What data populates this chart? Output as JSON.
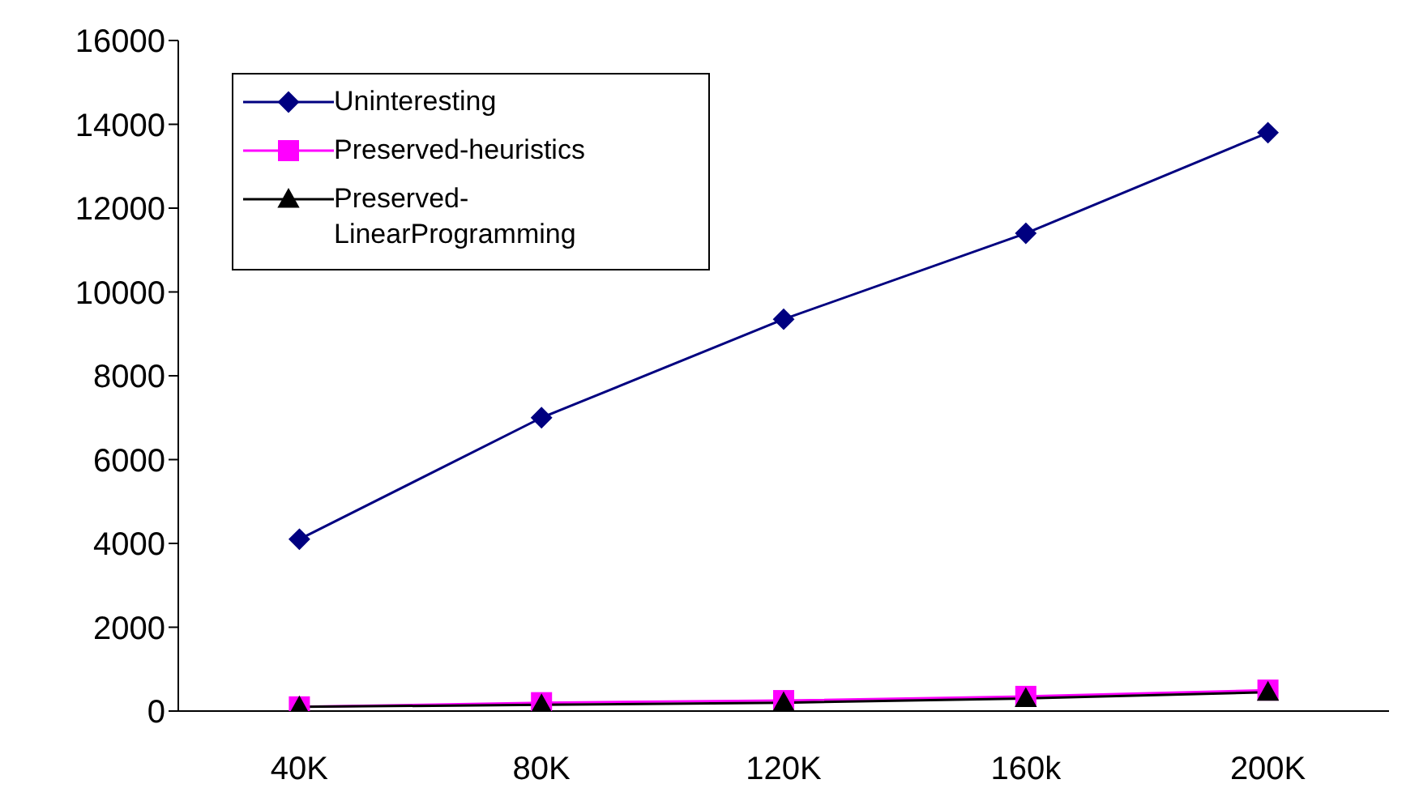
{
  "chart_data": {
    "type": "line",
    "categories": [
      "40K",
      "80K",
      "120K",
      "160k",
      "200K"
    ],
    "series": [
      {
        "name": "Uninteresting",
        "color": "#000080",
        "marker": "diamond",
        "values": [
          4100,
          7000,
          9350,
          11400,
          13800
        ]
      },
      {
        "name": "Preserved-heuristics",
        "color": "#ff00ff",
        "marker": "square",
        "values": [
          100,
          200,
          250,
          350,
          500
        ]
      },
      {
        "name": "Preserved-LinearProgramming",
        "color": "#000000",
        "marker": "triangle",
        "values": [
          100,
          150,
          200,
          300,
          450
        ]
      }
    ],
    "ylim": [
      0,
      16000
    ],
    "yticks": [
      0,
      2000,
      4000,
      6000,
      8000,
      10000,
      12000,
      14000,
      16000
    ],
    "grid": false,
    "legend": "top left",
    "line_style": "solid"
  }
}
